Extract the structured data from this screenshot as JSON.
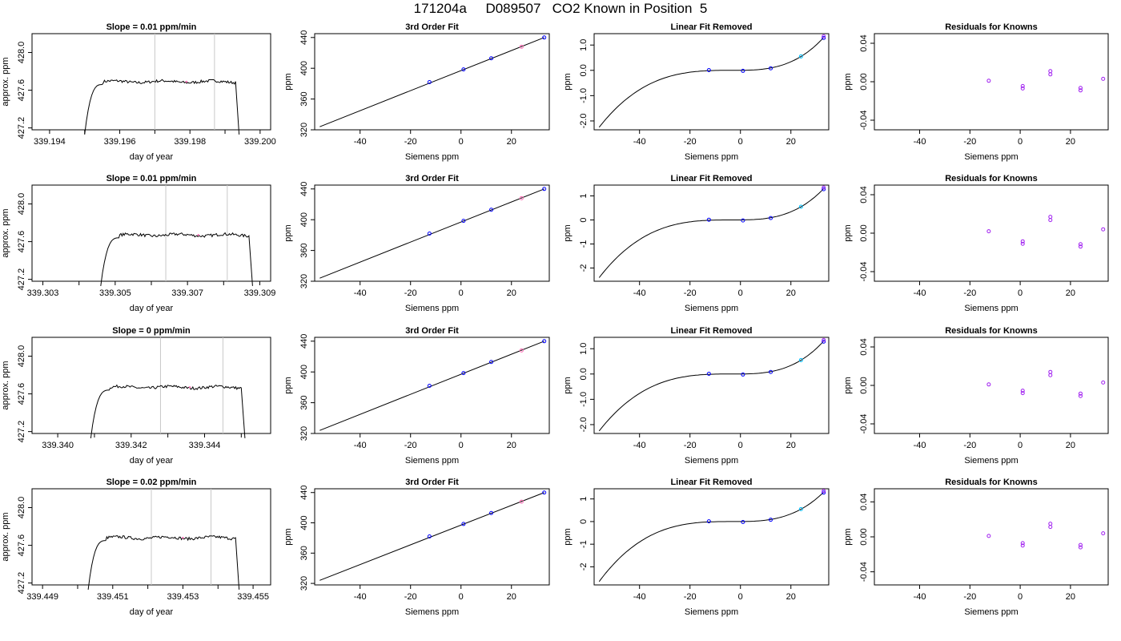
{
  "page": {
    "title": "171204a     D089507   CO2 Known in Position  5"
  },
  "chart_data": [
    {
      "type": "grid",
      "rows": [
        {
          "trace": {
            "type": "line",
            "title": "Slope =  0.01  ppm/min",
            "xlabel": "day of year",
            "ylabel": "approx. ppm",
            "xlim": [
              339.1935,
              339.2003
            ],
            "ylim": [
              427.18,
              428.2
            ],
            "xticks": [
              "339.194",
              "339.196",
              "339.198",
              "339.200"
            ],
            "yticks": [
              "427.2",
              "427.6",
              "428.0"
            ],
            "start": 339.195,
            "rise_end": 339.1955,
            "end": 339.1994,
            "plateau": 427.69,
            "vlines": [
              339.197,
              339.1987
            ],
            "mark": 339.1979
          },
          "fit": {
            "type": "line",
            "title": "3rd Order Fit",
            "xlabel": "Siemens ppm",
            "ylabel": "ppm",
            "xlim": [
              -58,
              35
            ],
            "ylim": [
              320,
              445
            ],
            "xticks": [
              "-40",
              "-20",
              "0",
              "20"
            ],
            "yticks": [
              "320",
              "360",
              "400",
              "440"
            ],
            "line": [
              [
                -56,
                324
              ],
              [
                33,
                440
              ]
            ],
            "points": [
              [
                -12.5,
                382
              ],
              [
                1,
                398.5
              ],
              [
                12,
                413
              ],
              [
                24,
                428
              ],
              [
                33,
                440
              ]
            ]
          },
          "linfit": {
            "type": "line",
            "title": "Linear Fit Removed",
            "xlabel": "Siemens ppm",
            "ylabel": "ppm",
            "xlim": [
              -58,
              35
            ],
            "ylim": [
              -2.35,
              1.45
            ],
            "xticks": [
              "-40",
              "-20",
              "0",
              "20"
            ],
            "yticks": [
              "-2.0",
              "-1.0",
              "0.0",
              "1.0"
            ],
            "curve_ends": [
              -2.25,
              1.3
            ],
            "points": [
              [
                -12.5,
                0.01
              ],
              [
                1,
                -0.02
              ],
              [
                12,
                0.08
              ],
              [
                24,
                0.55
              ],
              [
                33,
                1.28
              ]
            ]
          },
          "resid": {
            "type": "scatter",
            "title": "Residuals for Knowns",
            "xlabel": "Siemens ppm",
            "ylabel": "ppm",
            "xlim": [
              -58,
              35
            ],
            "ylim": [
              -0.05,
              0.05
            ],
            "xticks": [
              "-40",
              "-20",
              "0",
              "20"
            ],
            "yticks": [
              "-0.04",
              "0.00",
              "0.04"
            ],
            "points": [
              [
                -12.5,
                0.001
              ],
              [
                1,
                -0.007
              ],
              [
                12,
                0.011
              ],
              [
                24,
                -0.009
              ],
              [
                33,
                0.003
              ]
            ]
          }
        },
        {
          "trace": {
            "type": "line",
            "title": "Slope =  0.01  ppm/min",
            "xlabel": "day of year",
            "ylabel": "approx. ppm",
            "xlim": [
              339.3027,
              339.3093
            ],
            "ylim": [
              427.18,
              428.2
            ],
            "xticks": [
              "339.303",
              "339.305",
              "339.307",
              "339.309"
            ],
            "yticks": [
              "427.2",
              "427.6",
              "428.0"
            ],
            "start": 339.3046,
            "rise_end": 339.3051,
            "end": 339.3088,
            "plateau": 427.67,
            "vlines": [
              339.3064,
              339.3081
            ],
            "mark": 339.3073
          },
          "fit": {
            "type": "line",
            "title": "3rd Order Fit",
            "xlabel": "Siemens ppm",
            "ylabel": "ppm",
            "xlim": [
              -58,
              35
            ],
            "ylim": [
              320,
              445
            ],
            "xticks": [
              "-40",
              "-20",
              "0",
              "20"
            ],
            "yticks": [
              "320",
              "360",
              "400",
              "440"
            ],
            "line": [
              [
                -56,
                324
              ],
              [
                33,
                440
              ]
            ],
            "points": [
              [
                -12.5,
                382
              ],
              [
                1,
                398.5
              ],
              [
                12,
                413
              ],
              [
                24,
                428
              ],
              [
                33,
                440
              ]
            ]
          },
          "linfit": {
            "type": "line",
            "title": "Linear Fit Removed",
            "xlabel": "Siemens ppm",
            "ylabel": "ppm",
            "xlim": [
              -58,
              35
            ],
            "ylim": [
              -2.55,
              1.45
            ],
            "xticks": [
              "-40",
              "-20",
              "0",
              "20"
            ],
            "yticks": [
              "-2",
              "-1",
              "0",
              "1"
            ],
            "curve_ends": [
              -2.4,
              1.3
            ],
            "points": [
              [
                -12.5,
                0.01
              ],
              [
                1,
                -0.02
              ],
              [
                12,
                0.08
              ],
              [
                24,
                0.55
              ],
              [
                33,
                1.28
              ]
            ]
          },
          "resid": {
            "type": "scatter",
            "title": "Residuals for Knowns",
            "xlabel": "Siemens ppm",
            "ylabel": "ppm",
            "xlim": [
              -58,
              35
            ],
            "ylim": [
              -0.05,
              0.05
            ],
            "xticks": [
              "-40",
              "-20",
              "0",
              "20"
            ],
            "yticks": [
              "-0.04",
              "0.00",
              "0.04"
            ],
            "points": [
              [
                -12.5,
                0.002
              ],
              [
                1,
                -0.011
              ],
              [
                12,
                0.017
              ],
              [
                24,
                -0.014
              ],
              [
                33,
                0.004
              ]
            ]
          }
        },
        {
          "trace": {
            "type": "line",
            "title": "Slope =  0  ppm/min",
            "xlabel": "day of year",
            "ylabel": "approx. ppm",
            "xlim": [
              339.3393,
              339.3458
            ],
            "ylim": [
              427.18,
              428.2
            ],
            "xticks": [
              "339.340",
              "339.342",
              "339.344"
            ],
            "yticks": [
              "427.2",
              "427.6",
              "428.0"
            ],
            "start": 339.3409,
            "rise_end": 339.3414,
            "end": 339.3451,
            "plateau": 427.67,
            "vlines": [
              339.3428,
              339.3445
            ],
            "mark": 339.3436
          },
          "fit": {
            "type": "line",
            "title": "3rd Order Fit",
            "xlabel": "Siemens ppm",
            "ylabel": "ppm",
            "xlim": [
              -58,
              35
            ],
            "ylim": [
              320,
              445
            ],
            "xticks": [
              "-40",
              "-20",
              "0",
              "20"
            ],
            "yticks": [
              "320",
              "360",
              "400",
              "440"
            ],
            "line": [
              [
                -56,
                324
              ],
              [
                33,
                440
              ]
            ],
            "points": [
              [
                -12.5,
                382
              ],
              [
                1,
                398.5
              ],
              [
                12,
                413
              ],
              [
                24,
                428
              ],
              [
                33,
                440
              ]
            ]
          },
          "linfit": {
            "type": "line",
            "title": "Linear Fit Removed",
            "xlabel": "Siemens ppm",
            "ylabel": "ppm",
            "xlim": [
              -58,
              35
            ],
            "ylim": [
              -2.35,
              1.45
            ],
            "xticks": [
              "-40",
              "-20",
              "0",
              "20"
            ],
            "yticks": [
              "-2.0",
              "-1.0",
              "0.0",
              "1.0"
            ],
            "curve_ends": [
              -2.25,
              1.3
            ],
            "points": [
              [
                -12.5,
                0.01
              ],
              [
                1,
                -0.02
              ],
              [
                12,
                0.08
              ],
              [
                24,
                0.55
              ],
              [
                33,
                1.28
              ]
            ]
          },
          "resid": {
            "type": "scatter",
            "title": "Residuals for Knowns",
            "xlabel": "Siemens ppm",
            "ylabel": "ppm",
            "xlim": [
              -58,
              35
            ],
            "ylim": [
              -0.05,
              0.05
            ],
            "xticks": [
              "-40",
              "-20",
              "0",
              "20"
            ],
            "yticks": [
              "-0.04",
              "0.00",
              "0.04"
            ],
            "points": [
              [
                -12.5,
                0.001
              ],
              [
                1,
                -0.008
              ],
              [
                12,
                0.014
              ],
              [
                24,
                -0.011
              ],
              [
                33,
                0.003
              ]
            ]
          }
        },
        {
          "trace": {
            "type": "line",
            "title": "Slope =  0.02  ppm/min",
            "xlabel": "day of year",
            "ylabel": "approx. ppm",
            "xlim": [
              339.4487,
              339.4555
            ],
            "ylim": [
              427.18,
              428.2
            ],
            "xticks": [
              "339.449",
              "339.451",
              "339.453",
              "339.455"
            ],
            "yticks": [
              "427.2",
              "427.6",
              "428.0"
            ],
            "start": 339.4503,
            "rise_end": 339.4508,
            "end": 339.4546,
            "plateau": 427.68,
            "vlines": [
              339.4521,
              339.4538
            ],
            "mark": 339.453
          },
          "fit": {
            "type": "line",
            "title": "3rd Order Fit",
            "xlabel": "Siemens ppm",
            "ylabel": "ppm",
            "xlim": [
              -58,
              35
            ],
            "ylim": [
              318,
              445
            ],
            "xticks": [
              "-40",
              "-20",
              "0",
              "20"
            ],
            "yticks": [
              "320",
              "360",
              "400",
              "440"
            ],
            "line": [
              [
                -56,
                324
              ],
              [
                33,
                440
              ]
            ],
            "points": [
              [
                -12.5,
                382
              ],
              [
                1,
                398.5
              ],
              [
                12,
                413
              ],
              [
                24,
                428
              ],
              [
                33,
                440
              ]
            ]
          },
          "linfit": {
            "type": "line",
            "title": "Linear Fit Removed",
            "xlabel": "Siemens ppm",
            "ylabel": "ppm",
            "xlim": [
              -58,
              35
            ],
            "ylim": [
              -2.8,
              1.45
            ],
            "xticks": [
              "-40",
              "-20",
              "0",
              "20"
            ],
            "yticks": [
              "-2",
              "-1",
              "0",
              "1"
            ],
            "curve_ends": [
              -2.65,
              1.3
            ],
            "points": [
              [
                -12.5,
                0.01
              ],
              [
                1,
                -0.02
              ],
              [
                12,
                0.08
              ],
              [
                24,
                0.55
              ],
              [
                33,
                1.28
              ]
            ]
          },
          "resid": {
            "type": "scatter",
            "title": "Residuals for Knowns",
            "xlabel": "Siemens ppm",
            "ylabel": "ppm",
            "xlim": [
              -58,
              35
            ],
            "ylim": [
              -0.055,
              0.055
            ],
            "xticks": [
              "-40",
              "-20",
              "0",
              "20"
            ],
            "yticks": [
              "-0.04",
              "0.00",
              "0.04"
            ],
            "points": [
              [
                -12.5,
                0.001
              ],
              [
                1,
                -0.01
              ],
              [
                12,
                0.015
              ],
              [
                24,
                -0.012
              ],
              [
                33,
                0.004
              ]
            ]
          }
        }
      ]
    }
  ],
  "colors": {
    "axis": "#000000",
    "trace_line": "#000000",
    "vline": "#c8c8c8",
    "point_blue": "#0000ff",
    "point_purple": "#a020f0",
    "point_cyan": "#00bfff",
    "point_pink": "#ff69b4"
  }
}
